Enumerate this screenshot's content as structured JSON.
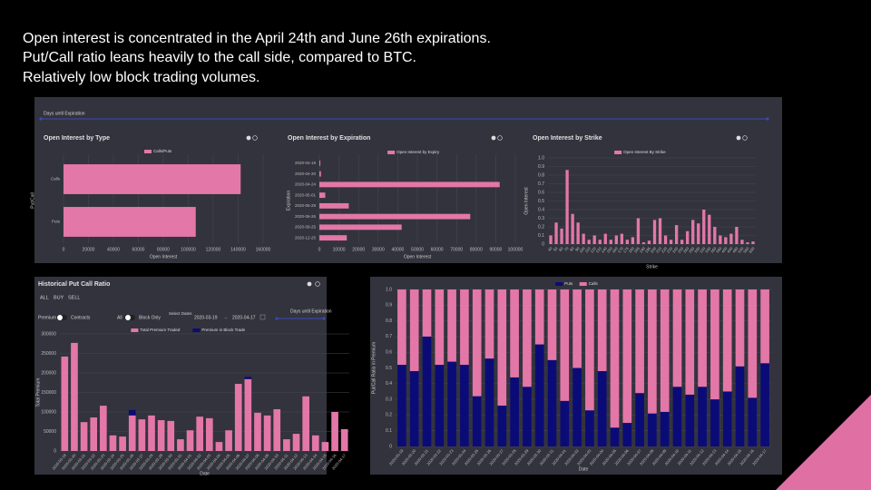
{
  "slide": {
    "lines": [
      "Open interest is concentrated in the April 24th and June 26th expirations.",
      "Put/Call ratio leans heavily to the call side, compared to BTC.",
      "Relatively low block trading volumes."
    ]
  },
  "panels": {
    "days_until_expiration": "Days until Expiration"
  },
  "controls": {
    "side": [
      "ALL",
      "BUY",
      "SELL"
    ],
    "unit_left": "Premium",
    "unit_right": "Contracts",
    "block_left": "All",
    "block_right": "Block Only",
    "select_dates": "Select Dates",
    "date_start": "2020-03-19",
    "date_end": "2020-04-17",
    "days_until_expiration": "Days until Expiration"
  },
  "chart_data": [
    {
      "type": "bar",
      "horizontal": true,
      "title": "Open Interest by Type",
      "xlabel": "Open Interest",
      "ylabel": "Put/Call",
      "categories": [
        "Calls",
        "Puts"
      ],
      "series": [
        {
          "name": "Calls/Puts",
          "color": "#e377a8",
          "values": [
            142000,
            106000
          ]
        }
      ],
      "xlim": [
        0,
        160000
      ],
      "xticks": [
        0,
        20000,
        40000,
        60000,
        80000,
        100000,
        120000,
        140000,
        160000
      ],
      "grid": true
    },
    {
      "type": "bar",
      "horizontal": true,
      "title": "Open Interest by Expiration",
      "xlabel": "Open Interest",
      "ylabel": "Expiration",
      "categories": [
        "2020-04-19",
        "2020-04-20",
        "2020-04-24",
        "2020-05-01",
        "2020-05-29",
        "2020-06-26",
        "2020-09-25",
        "2020-12-25"
      ],
      "series": [
        {
          "name": "Open Interest by Expiry",
          "color": "#e377a8",
          "values": [
            500,
            800,
            92000,
            3000,
            15000,
            77000,
            42000,
            14000
          ]
        }
      ],
      "xlim": [
        0,
        100000
      ],
      "xticks": [
        0,
        10000,
        20000,
        30000,
        40000,
        50000,
        60000,
        70000,
        80000,
        90000,
        100000
      ],
      "grid": true
    },
    {
      "type": "bar",
      "title": "Open Interest by Strike",
      "xlabel": "Strike",
      "ylabel": "Open Interest",
      "categories": [
        "40",
        "50",
        "60",
        "70",
        "80",
        "90",
        "100",
        "110",
        "120",
        "130",
        "140",
        "150",
        "160",
        "170",
        "175",
        "180",
        "185",
        "190",
        "195",
        "200",
        "210",
        "220",
        "230",
        "240",
        "250",
        "260",
        "280",
        "300",
        "320",
        "340",
        "360",
        "380",
        "400",
        "440",
        "480",
        "520",
        "560",
        "600"
      ],
      "series": [
        {
          "name": "Open Interest By Strike",
          "color": "#e377a8",
          "values": [
            0.1,
            0.25,
            0.18,
            0.86,
            0.35,
            0.25,
            0.12,
            0.05,
            0.1,
            0.05,
            0.12,
            0.05,
            0.1,
            0.12,
            0.05,
            0.08,
            0.3,
            0.02,
            0.04,
            0.28,
            0.3,
            0.1,
            0.05,
            0.22,
            0.05,
            0.15,
            0.28,
            0.24,
            0.4,
            0.34,
            0.2,
            0.1,
            0.08,
            0.12,
            0.2,
            0.05,
            0.02,
            0.03
          ]
        }
      ],
      "ylim": [
        0,
        1
      ],
      "yticks": [
        0,
        0.1,
        0.2,
        0.3,
        0.4,
        0.5,
        0.6,
        0.7,
        0.8,
        0.9,
        {
          "value": 1,
          "label": "1.0"
        }
      ],
      "grid": true
    },
    {
      "type": "bar",
      "title": "Historical Put Call Ratio",
      "xlabel": "Date",
      "ylabel": "Total Premium",
      "categories": [
        "2020-03-19",
        "2020-03-20",
        "2020-03-21",
        "2020-03-22",
        "2020-03-23",
        "2020-03-24",
        "2020-03-25",
        "2020-03-26",
        "2020-03-27",
        "2020-03-28",
        "2020-03-29",
        "2020-03-30",
        "2020-03-31",
        "2020-04-01",
        "2020-04-02",
        "2020-04-03",
        "2020-04-04",
        "2020-04-05",
        "2020-04-06",
        "2020-04-07",
        "2020-04-08",
        "2020-04-09",
        "2020-04-10",
        "2020-04-11",
        "2020-04-12",
        "2020-04-13",
        "2020-04-14",
        "2020-04-15",
        "2020-04-16",
        "2020-04-17"
      ],
      "series": [
        {
          "name": "Total Premium Traded",
          "color": "#e377a8",
          "values": [
            242000,
            277000,
            74000,
            86000,
            116000,
            40000,
            37000,
            91000,
            81000,
            91000,
            79000,
            77000,
            30000,
            53000,
            88000,
            84000,
            23000,
            53000,
            172000,
            184000,
            98000,
            91000,
            107000,
            30000,
            44000,
            140000,
            40000,
            23000,
            100000,
            56000
          ]
        },
        {
          "name": "Premium in Block Trade",
          "color": "#0b0b78",
          "values": [
            0,
            0,
            0,
            0,
            0,
            0,
            0,
            105000,
            0,
            0,
            0,
            0,
            0,
            0,
            0,
            0,
            0,
            0,
            0,
            190000,
            0,
            0,
            0,
            0,
            0,
            0,
            0,
            0,
            0,
            0
          ]
        }
      ],
      "ylim": [
        0,
        300000
      ],
      "yticks": [
        0,
        50000,
        100000,
        150000,
        200000,
        250000,
        300000
      ],
      "grid": true
    },
    {
      "type": "bar",
      "stacked": true,
      "xlabel": "Date",
      "ylabel": "Put/Call Ratio in Premium",
      "categories": [
        "2020-03-19",
        "2020-03-20",
        "2020-03-21",
        "2020-03-22",
        "2020-03-23",
        "2020-03-24",
        "2020-03-25",
        "2020-03-26",
        "2020-03-27",
        "2020-03-28",
        "2020-03-29",
        "2020-03-30",
        "2020-03-31",
        "2020-04-01",
        "2020-04-02",
        "2020-04-03",
        "2020-04-04",
        "2020-04-05",
        "2020-04-06",
        "2020-04-07",
        "2020-04-08",
        "2020-04-09",
        "2020-04-10",
        "2020-04-11",
        "2020-04-12",
        "2020-04-13",
        "2020-04-14",
        "2020-04-15",
        "2020-04-16",
        "2020-04-17"
      ],
      "series": [
        {
          "name": "Puts",
          "color": "#0b0b78",
          "values": [
            0.52,
            0.48,
            0.7,
            0.52,
            0.54,
            0.52,
            0.32,
            0.56,
            0.26,
            0.44,
            0.38,
            0.65,
            0.55,
            0.29,
            0.5,
            0.23,
            0.48,
            0.12,
            0.15,
            0.34,
            0.21,
            0.22,
            0.38,
            0.33,
            0.38,
            0.3,
            0.35,
            0.51,
            0.31,
            0.53
          ]
        },
        {
          "name": "Calls",
          "color": "#e377a8",
          "values": [
            0.48,
            0.52,
            0.3,
            0.48,
            0.46,
            0.48,
            0.68,
            0.44,
            0.74,
            0.56,
            0.62,
            0.35,
            0.45,
            0.71,
            0.5,
            0.77,
            0.52,
            0.88,
            0.85,
            0.66,
            0.79,
            0.78,
            0.62,
            0.67,
            0.62,
            0.7,
            0.65,
            0.49,
            0.69,
            0.47
          ]
        }
      ],
      "ylim": [
        0,
        1
      ],
      "yticks": [
        0,
        0.1,
        0.2,
        0.3,
        0.4,
        0.5,
        0.6,
        0.7,
        0.8,
        0.9,
        {
          "value": 1,
          "label": "1.0"
        }
      ],
      "grid": true
    }
  ]
}
